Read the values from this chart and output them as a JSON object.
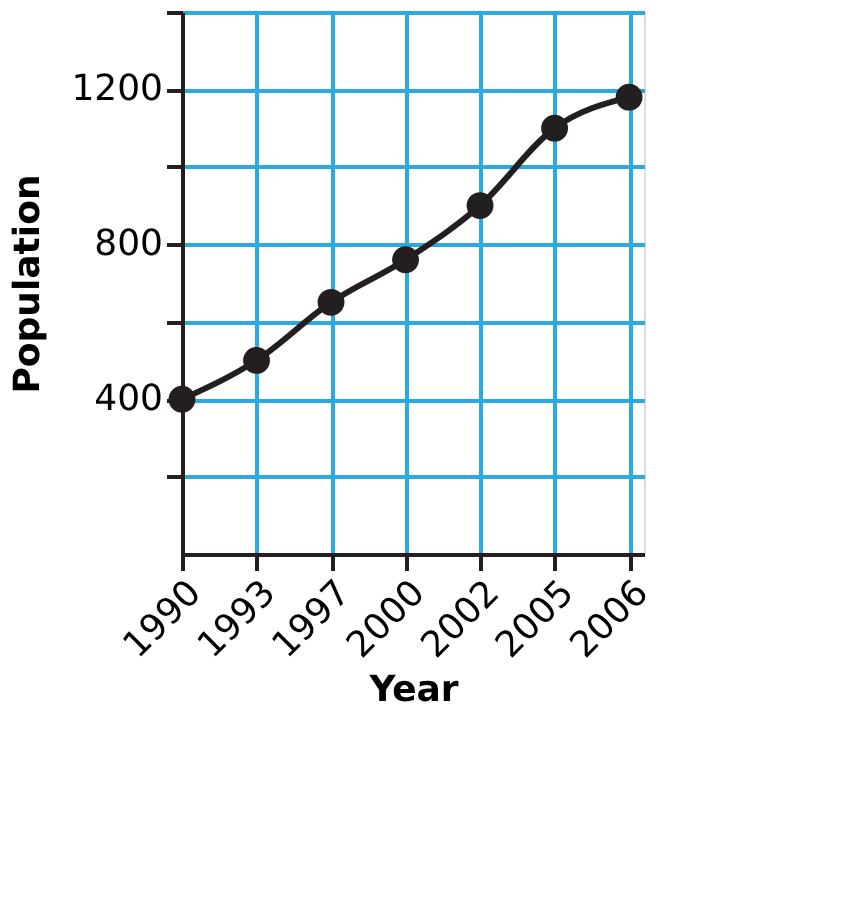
{
  "chart_data": {
    "type": "line",
    "xlabel": "Year",
    "ylabel": "Population",
    "categories": [
      "1990",
      "1993",
      "1997",
      "2000",
      "2002",
      "2005",
      "2006"
    ],
    "series": [
      {
        "color": "#231f20",
        "values": [
          400,
          500,
          650,
          760,
          900,
          1100,
          1180
        ]
      }
    ],
    "ylim": [
      0,
      1400
    ],
    "yticks": [
      {
        "value": 200,
        "label": null
      },
      400,
      {
        "value": 600,
        "label": null
      },
      800,
      {
        "value": 1000,
        "label": null
      },
      1200,
      {
        "value": 1400,
        "label": null
      }
    ],
    "grid": true,
    "marker": "circle",
    "line_style": "solid"
  }
}
